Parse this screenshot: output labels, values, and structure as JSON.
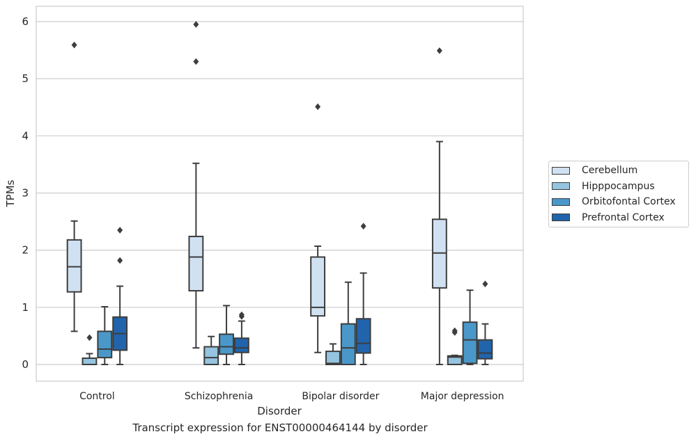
{
  "chart_data": {
    "type": "box",
    "title": "",
    "caption": "Transcript expression for ENST00000464144 by disorder",
    "xlabel": "Disorder",
    "ylabel": "TPMs",
    "ylim": [
      -0.3,
      6.27
    ],
    "yticks": [
      0,
      1,
      2,
      3,
      4,
      5,
      6
    ],
    "grid": "horizontal",
    "legend_position": "right",
    "categories": [
      "Control",
      "Schizophrenia",
      "Bipolar disorder",
      "Major depression"
    ],
    "series": [
      {
        "name": "Cerebellum",
        "color": "#d0e1f2",
        "boxes": [
          {
            "whisker_low": 0.58,
            "q1": 1.27,
            "median": 1.71,
            "q3": 2.18,
            "whisker_high": 2.51,
            "outliers": [
              5.59
            ]
          },
          {
            "whisker_low": 0.29,
            "q1": 1.29,
            "median": 1.88,
            "q3": 2.24,
            "whisker_high": 3.52,
            "outliers": [
              5.3,
              5.95
            ]
          },
          {
            "whisker_low": 0.21,
            "q1": 0.85,
            "median": 1.0,
            "q3": 1.88,
            "whisker_high": 2.07,
            "outliers": [
              4.51
            ]
          },
          {
            "whisker_low": 0.0,
            "q1": 1.34,
            "median": 1.95,
            "q3": 2.54,
            "whisker_high": 3.9,
            "outliers": [
              5.49
            ]
          }
        ]
      },
      {
        "name": "Hipppocampus",
        "color": "#94c4df",
        "boxes": [
          {
            "whisker_low": 0.0,
            "q1": 0.0,
            "median": 0.0,
            "q3": 0.11,
            "whisker_high": 0.19,
            "outliers": [
              0.47
            ]
          },
          {
            "whisker_low": 0.0,
            "q1": 0.0,
            "median": 0.12,
            "q3": 0.31,
            "whisker_high": 0.49,
            "outliers": []
          },
          {
            "whisker_low": 0.0,
            "q1": 0.0,
            "median": 0.02,
            "q3": 0.23,
            "whisker_high": 0.36,
            "outliers": []
          },
          {
            "whisker_low": 0.0,
            "q1": 0.0,
            "median": 0.13,
            "q3": 0.15,
            "whisker_high": 0.16,
            "outliers": [
              0.56,
              0.59
            ]
          }
        ]
      },
      {
        "name": "Orbitofontal Cortex",
        "color": "#4a98c9",
        "boxes": [
          {
            "whisker_low": 0.0,
            "q1": 0.12,
            "median": 0.27,
            "q3": 0.58,
            "whisker_high": 1.01,
            "outliers": []
          },
          {
            "whisker_low": 0.0,
            "q1": 0.18,
            "median": 0.31,
            "q3": 0.53,
            "whisker_high": 1.03,
            "outliers": []
          },
          {
            "whisker_low": 0.0,
            "q1": 0.0,
            "median": 0.29,
            "q3": 0.71,
            "whisker_high": 1.44,
            "outliers": []
          },
          {
            "whisker_low": 0.0,
            "q1": 0.02,
            "median": 0.43,
            "q3": 0.74,
            "whisker_high": 1.3,
            "outliers": []
          }
        ]
      },
      {
        "name": "Prefrontal Cortex",
        "color": "#2164ab",
        "boxes": [
          {
            "whisker_low": 0.0,
            "q1": 0.25,
            "median": 0.54,
            "q3": 0.83,
            "whisker_high": 1.37,
            "outliers": [
              1.82,
              2.35
            ]
          },
          {
            "whisker_low": 0.0,
            "q1": 0.21,
            "median": 0.29,
            "q3": 0.46,
            "whisker_high": 0.76,
            "outliers": [
              0.84,
              0.87
            ]
          },
          {
            "whisker_low": 0.0,
            "q1": 0.2,
            "median": 0.37,
            "q3": 0.8,
            "whisker_high": 1.6,
            "outliers": [
              2.42
            ]
          },
          {
            "whisker_low": 0.0,
            "q1": 0.1,
            "median": 0.2,
            "q3": 0.43,
            "whisker_high": 0.71,
            "outliers": [
              1.41
            ]
          }
        ]
      }
    ]
  }
}
